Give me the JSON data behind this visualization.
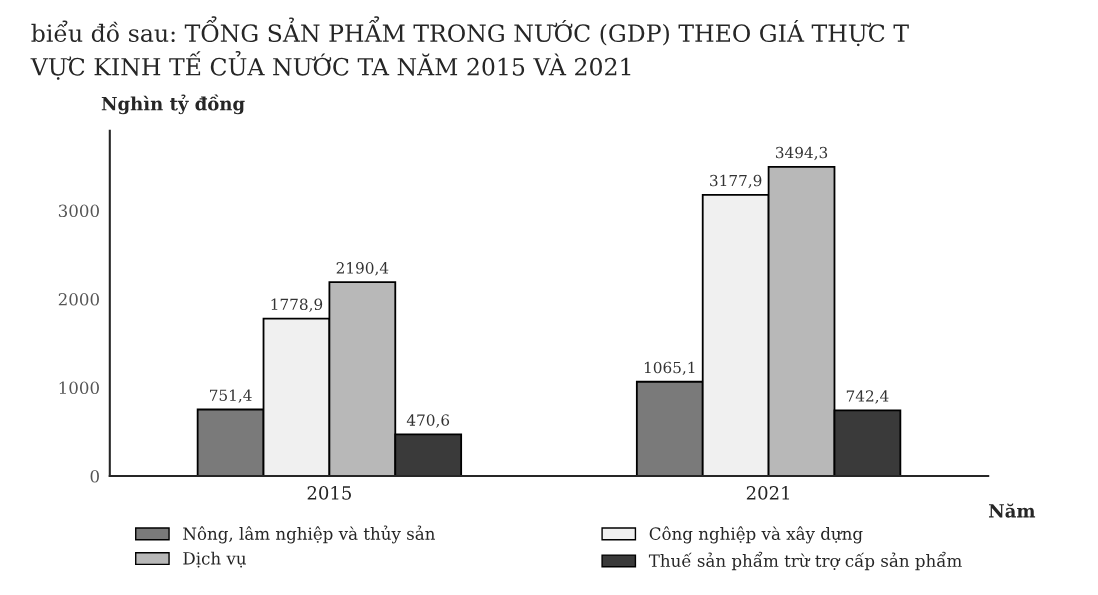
{
  "chart_data": {
    "type": "bar",
    "title": "biểu đồ sau: TỔNG SẢN PHẨM TRONG NƯỚC (GDP) THEO GIÁ THỰC T\nVỰC KINH TẾ CỦA NƯỚC TA NĂM 2015 VÀ 2021",
    "ylabel": "Nghìn tỷ đồng",
    "xlabel": "Năm",
    "categories": [
      "2015",
      "2021"
    ],
    "series": [
      {
        "name": "Nông, lâm nghiệp và thủy sản",
        "color": "#7a7a7a",
        "values": [
          751.4,
          1065.1
        ],
        "value_labels": [
          "751,4",
          "1065,1"
        ]
      },
      {
        "name": "Công nghiệp và xây dựng",
        "color": "#f0f0f0",
        "values": [
          1778.9,
          3177.9
        ],
        "value_labels": [
          "1778,9",
          "3177,9"
        ]
      },
      {
        "name": "Dịch vụ",
        "color": "#b8b8b8",
        "values": [
          2190.4,
          3494.3
        ],
        "value_labels": [
          "2190,4",
          "3494,3"
        ]
      },
      {
        "name": "Thuế sản phẩm trừ trợ cấp sản phẩm",
        "color": "#3a3a3a",
        "values": [
          470.6,
          742.4
        ],
        "value_labels": [
          "470,6",
          "742,4"
        ]
      }
    ],
    "ylim": [
      0,
      3900
    ],
    "yticks": [
      0,
      1000,
      2000,
      3000
    ],
    "grid": false,
    "legend": "bottom"
  }
}
